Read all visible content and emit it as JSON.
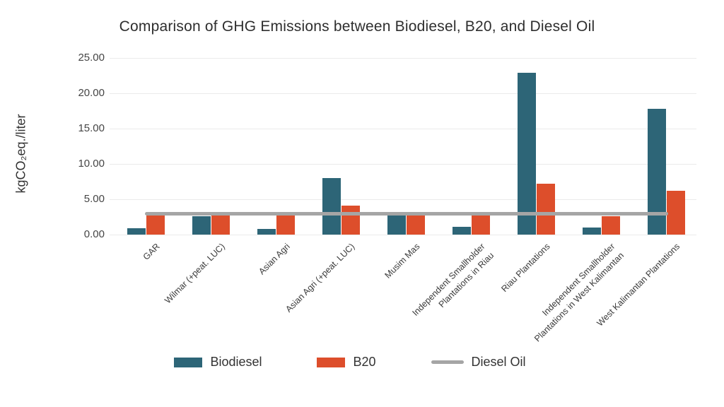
{
  "title": "Comparison of GHG Emissions between Biodiesel, B20, and Diesel Oil",
  "chart_data": {
    "type": "bar",
    "title": "Comparison of GHG Emissions between Biodiesel, B20, and Diesel Oil",
    "xlabel": "",
    "ylabel": "kgCO₂eq./liter",
    "ylim": [
      0,
      25
    ],
    "grid": true,
    "legend_position": "bottom",
    "yticks": [
      {
        "value": 25,
        "label": "25.00"
      },
      {
        "value": 20,
        "label": "20.00"
      },
      {
        "value": 15,
        "label": "15.00"
      },
      {
        "value": 10,
        "label": "10.00"
      },
      {
        "value": 5,
        "label": "5.00"
      },
      {
        "value": 0,
        "label": "0.00"
      }
    ],
    "categories": [
      "GAR",
      "Wilmar (+peat. LUC)",
      "Asian Agri",
      "Asian Agri (+peat. LUC)",
      "Musim Mas",
      "Independent Smallholder\nPlantations in Riau",
      "Riau Plantations",
      "Independent Smallholder\nPlantations in West Kalimantan",
      "West Kalimantan Plantations"
    ],
    "series": [
      {
        "name": "Biodiesel",
        "type": "bar",
        "color": "#2d6577",
        "values": [
          0.9,
          2.6,
          0.8,
          8.0,
          2.8,
          1.1,
          22.9,
          1.0,
          17.8
        ]
      },
      {
        "name": "B20",
        "type": "bar",
        "color": "#dd4e2b",
        "values": [
          2.7,
          2.8,
          2.7,
          4.1,
          2.8,
          2.8,
          7.2,
          2.6,
          6.2
        ]
      },
      {
        "name": "Diesel Oil",
        "type": "line",
        "color": "#a5a5a5",
        "value": 3.0
      }
    ]
  }
}
